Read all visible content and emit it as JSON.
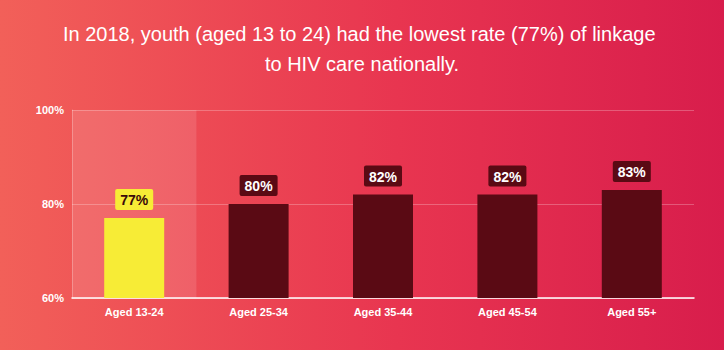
{
  "chart_data": {
    "type": "bar",
    "title": "In 2018, youth (aged 13 to 24) had the lowest rate (77%) of linkage to HIV care nationally.",
    "categories": [
      "Aged 13-24",
      "Aged 25-34",
      "Aged 35-44",
      "Aged 45-54",
      "Aged 55+"
    ],
    "values": [
      77,
      80,
      82,
      82,
      83
    ],
    "value_labels": [
      "77%",
      "80%",
      "82%",
      "82%",
      "83%"
    ],
    "colors": [
      "#f7ec36",
      "#5a0a14",
      "#5a0a14",
      "#5a0a14",
      "#5a0a14"
    ],
    "ylim": [
      60,
      100
    ],
    "yticks": [
      {
        "value": 60,
        "label": "60%"
      },
      {
        "value": 80,
        "label": "80%"
      },
      {
        "value": 100,
        "label": "100%"
      }
    ],
    "grid": true,
    "data_labels": true
  }
}
